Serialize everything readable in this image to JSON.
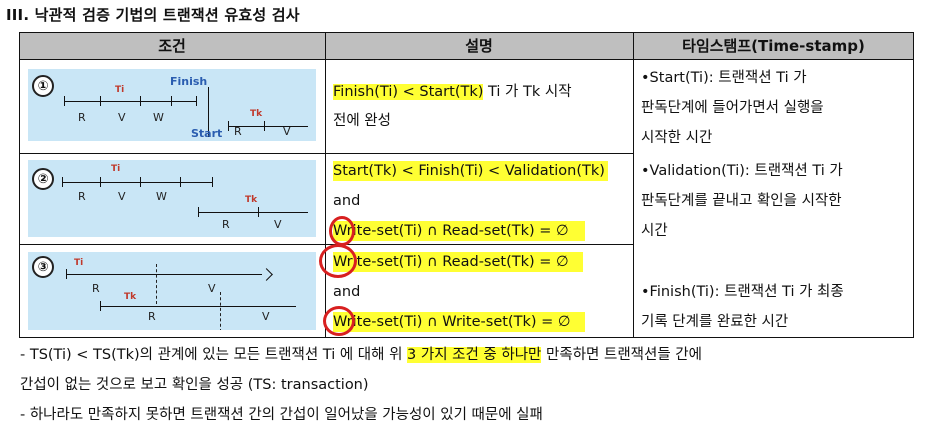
{
  "title": "III. 낙관적 검증 기법의 트랜잭션 유효성 검사",
  "headers": {
    "condition": "조건",
    "description": "설명",
    "timestamp": "타임스탬프(Time-stamp)"
  },
  "rows": [
    {
      "num": "①",
      "desc_hl": "Finish(Ti) < Start(Tk)",
      "desc_rest": " Ti 가 Tk 시작",
      "desc_line2": "전에 완성",
      "diagram": {
        "labels": [
          "R",
          "V",
          "W",
          "R",
          "V"
        ],
        "ti": "Ti",
        "tk": "Tk",
        "finish": "Finish",
        "start": "Start"
      }
    },
    {
      "num": "②",
      "line1": "Start(Tk) < Finish(Ti) < Validation(Tk)",
      "line2": "and",
      "line3": "Write-set(Ti) ∩ Read-set(Tk) = ∅",
      "diagram": {
        "labels": [
          "R",
          "V",
          "W",
          "R",
          "V"
        ],
        "ti": "Ti",
        "tk": "Tk"
      }
    },
    {
      "num": "③",
      "line1": "Write-set(Ti) ∩ Read-set(Tk) = ∅",
      "line2": "and",
      "line3": "Write-set(Ti) ∩ Write-set(Tk) = ∅",
      "diagram": {
        "labels": [
          "R",
          "V",
          "R",
          "V"
        ],
        "ti": "Ti",
        "tk": "Tk"
      }
    }
  ],
  "timestamps": {
    "start": [
      "•Start(Ti): 트랜잭션 Ti 가",
      "판독단계에 들어가면서 실행을",
      "시작한 시간"
    ],
    "validation": [
      "•Validation(Ti): 트랜잭션 Ti 가",
      "판독단계를 끝내고 확인을 시작한",
      "시간"
    ],
    "finish": [
      "•Finish(Ti): 트랜잭션 Ti 가 최종",
      "기록 단계를 완료한 시간"
    ]
  },
  "notes": {
    "line1_pre": "- TS(Ti) < TS(Tk)의 관계에 있는 모든 트랜잭션 Ti 에 대해 위 ",
    "line1_hl": "3 가지 조건 중 하나만",
    "line1_post": " 만족하면 트랜잭션들 간에",
    "line2": "간섭이 없는 것으로 보고 확인을 성공 (TS: transaction)",
    "line3": "- 하나라도 만족하지 못하면 트랜잭션 간의 간섭이 일어났을 가능성이 있기 때문에 실패"
  },
  "colors": {
    "header_bg": "#bfbfbf",
    "highlight": "#ffff33",
    "diagram_bg": "#c9e6f6",
    "circle": "#d82020"
  }
}
